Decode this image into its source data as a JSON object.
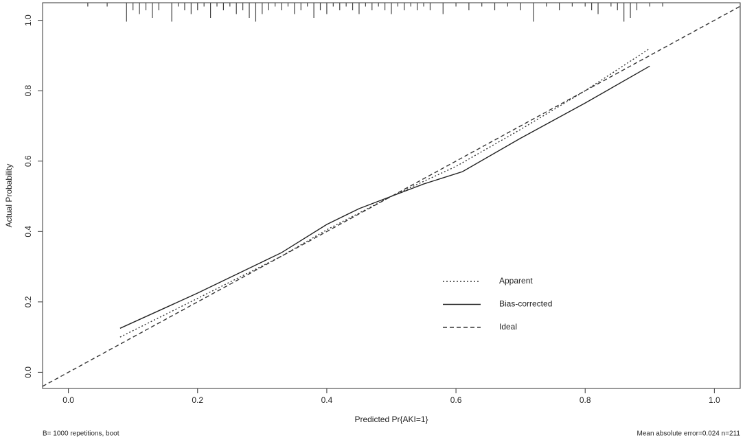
{
  "chart_data": {
    "type": "line",
    "xlabel": "Predicted Pr{AKI=1}",
    "ylabel": "Actual Probability",
    "footnote_left": "B= 1000 repetitions, boot",
    "footnote_right": "Mean absolute error=0.024 n=211",
    "xlim": [
      -0.04,
      1.04
    ],
    "ylim": [
      -0.046,
      1.05
    ],
    "xticks": [
      {
        "value": 0,
        "label": "0.0"
      },
      0.2,
      0.4,
      0.6,
      0.8,
      {
        "value": 1,
        "label": "1.0"
      }
    ],
    "yticks": [
      {
        "value": 0,
        "label": "0.0"
      },
      0.2,
      0.4,
      0.6,
      0.8,
      {
        "value": 1,
        "label": "1.0"
      }
    ],
    "legend": "lower right",
    "series": [
      {
        "name": "Apparent",
        "color": "#333333",
        "linestyle": "dotted",
        "x": [
          0.08,
          0.2,
          0.33,
          0.4,
          0.5,
          0.6,
          0.7,
          0.8,
          0.9
        ],
        "values": [
          0.1,
          0.21,
          0.33,
          0.405,
          0.5,
          0.585,
          0.69,
          0.8,
          0.92
        ]
      },
      {
        "name": "Bias-corrected",
        "color": "#222222",
        "linestyle": "solid",
        "x": [
          0.08,
          0.2,
          0.33,
          0.4,
          0.45,
          0.5,
          0.55,
          0.61,
          0.7,
          0.8,
          0.9
        ],
        "values": [
          0.125,
          0.225,
          0.34,
          0.42,
          0.465,
          0.5,
          0.535,
          0.57,
          0.665,
          0.765,
          0.87
        ]
      },
      {
        "name": "Ideal",
        "color": "#333333",
        "linestyle": "dashed",
        "x": [
          -0.04,
          1.04
        ],
        "values": [
          -0.04,
          1.04
        ]
      }
    ],
    "rug": {
      "color": "#444444",
      "x": [
        0.03,
        0.06,
        0.09,
        0.1,
        0.11,
        0.12,
        0.13,
        0.14,
        0.16,
        0.17,
        0.18,
        0.19,
        0.2,
        0.21,
        0.22,
        0.23,
        0.24,
        0.25,
        0.26,
        0.27,
        0.28,
        0.29,
        0.3,
        0.31,
        0.32,
        0.33,
        0.34,
        0.35,
        0.36,
        0.37,
        0.38,
        0.39,
        0.4,
        0.41,
        0.42,
        0.43,
        0.44,
        0.45,
        0.46,
        0.47,
        0.48,
        0.49,
        0.5,
        0.51,
        0.52,
        0.53,
        0.54,
        0.55,
        0.56,
        0.58,
        0.6,
        0.62,
        0.64,
        0.66,
        0.68,
        0.7,
        0.72,
        0.74,
        0.76,
        0.78,
        0.8,
        0.81,
        0.82,
        0.84,
        0.85,
        0.86,
        0.87,
        0.88,
        0.9,
        0.92
      ],
      "counts": [
        1,
        1,
        5,
        2,
        3,
        2,
        4,
        2,
        5,
        1,
        2,
        3,
        2,
        1,
        4,
        1,
        2,
        1,
        3,
        2,
        4,
        5,
        3,
        2,
        1,
        2,
        1,
        3,
        2,
        1,
        4,
        2,
        3,
        1,
        2,
        1,
        2,
        3,
        1,
        2,
        1,
        2,
        3,
        1,
        2,
        1,
        2,
        1,
        2,
        3,
        1,
        2,
        1,
        2,
        1,
        2,
        5,
        1,
        2,
        1,
        1,
        2,
        3,
        1,
        2,
        5,
        4,
        2,
        1,
        1
      ]
    }
  }
}
